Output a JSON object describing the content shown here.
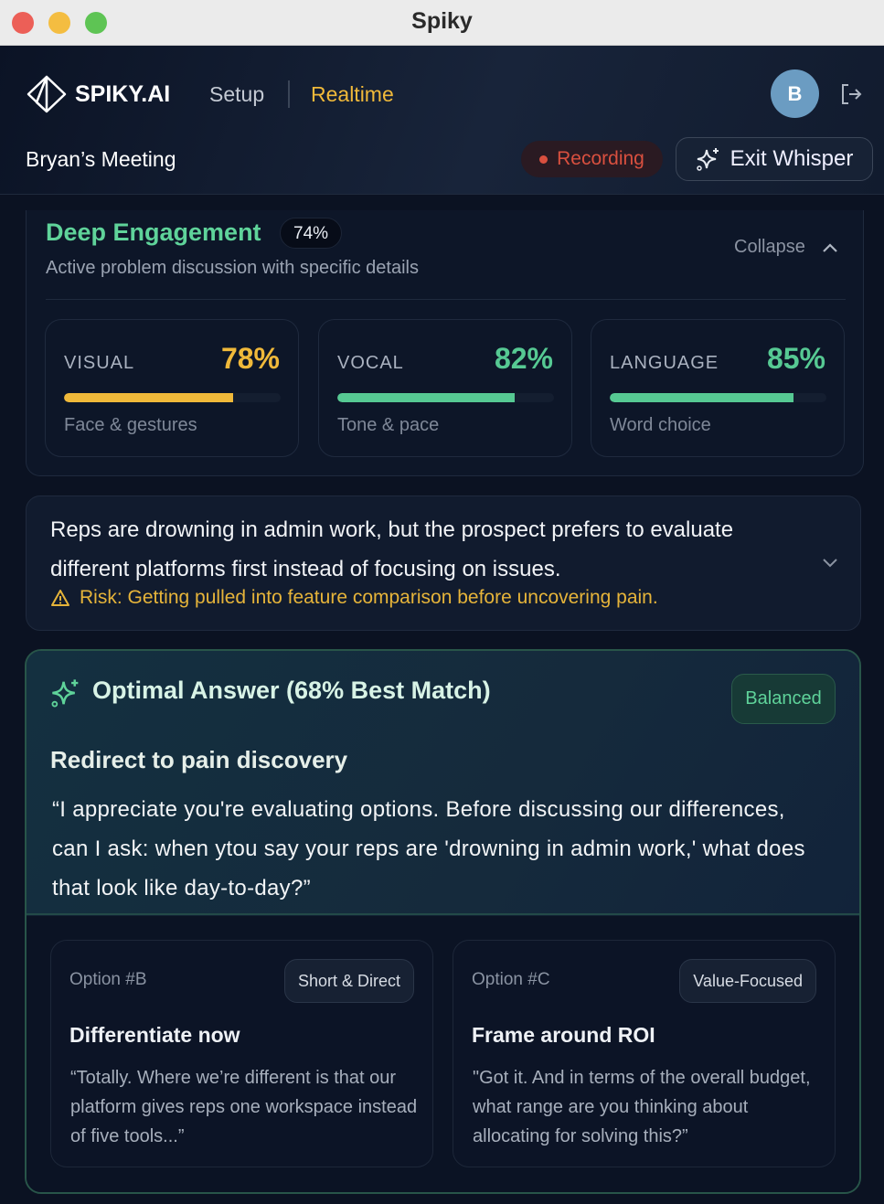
{
  "window": {
    "title": "Spiky"
  },
  "header": {
    "brand": "SPIKY.AI",
    "nav": [
      {
        "label": "Setup",
        "active": false
      },
      {
        "label": "Realtime",
        "active": true
      }
    ],
    "avatar_initial": "B",
    "meeting_title": "Bryan’s Meeting",
    "recording_label": "Recording",
    "exit_label": "Exit Whisper"
  },
  "engagement": {
    "title": "Deep Engagement",
    "score": "74%",
    "subtitle": "Active problem discussion with specific details",
    "collapse_label": "Collapse",
    "metrics": [
      {
        "label": "VISUAL",
        "value": "78%",
        "progress": 78,
        "sub": "Face & gestures",
        "color": "#f0b93a"
      },
      {
        "label": "VOCAL",
        "value": "82%",
        "progress": 82,
        "sub": "Tone & pace",
        "color": "#56c993"
      },
      {
        "label": "LANGUAGE",
        "value": "85%",
        "progress": 85,
        "sub": "Word choice",
        "color": "#56c993"
      }
    ]
  },
  "insight": {
    "text": "Reps are drowning in admin work, but the prospect prefers to evaluate different platforms first instead of focusing on issues.",
    "risk": "Risk: Getting pulled into feature comparison before uncovering pain."
  },
  "optimal": {
    "title": "Optimal Answer (68% Best Match)",
    "tag": "Balanced",
    "heading": "Redirect to pain discovery",
    "quote": "“I appreciate you're evaluating options. Before discussing our differences, can I ask: when ytou say your reps are 'drowning in admin work,' what does that look like day-to-day?”",
    "options": [
      {
        "number": "Option #B",
        "tag": "Short & Direct",
        "title": "Differentiate now",
        "text": "“Totally. Where we’re different is that our platform gives reps one workspace instead of five tools...”"
      },
      {
        "number": "Option #C",
        "tag": "Value-Focused",
        "title": "Frame around ROI",
        "text": "\"Got it. And in terms of the overall budget, what range are you thinking about allocating for solving this?”"
      }
    ]
  },
  "colors": {
    "accent_green": "#5fd39a",
    "accent_yellow": "#f0b93a",
    "recording_red": "#d9503f"
  }
}
